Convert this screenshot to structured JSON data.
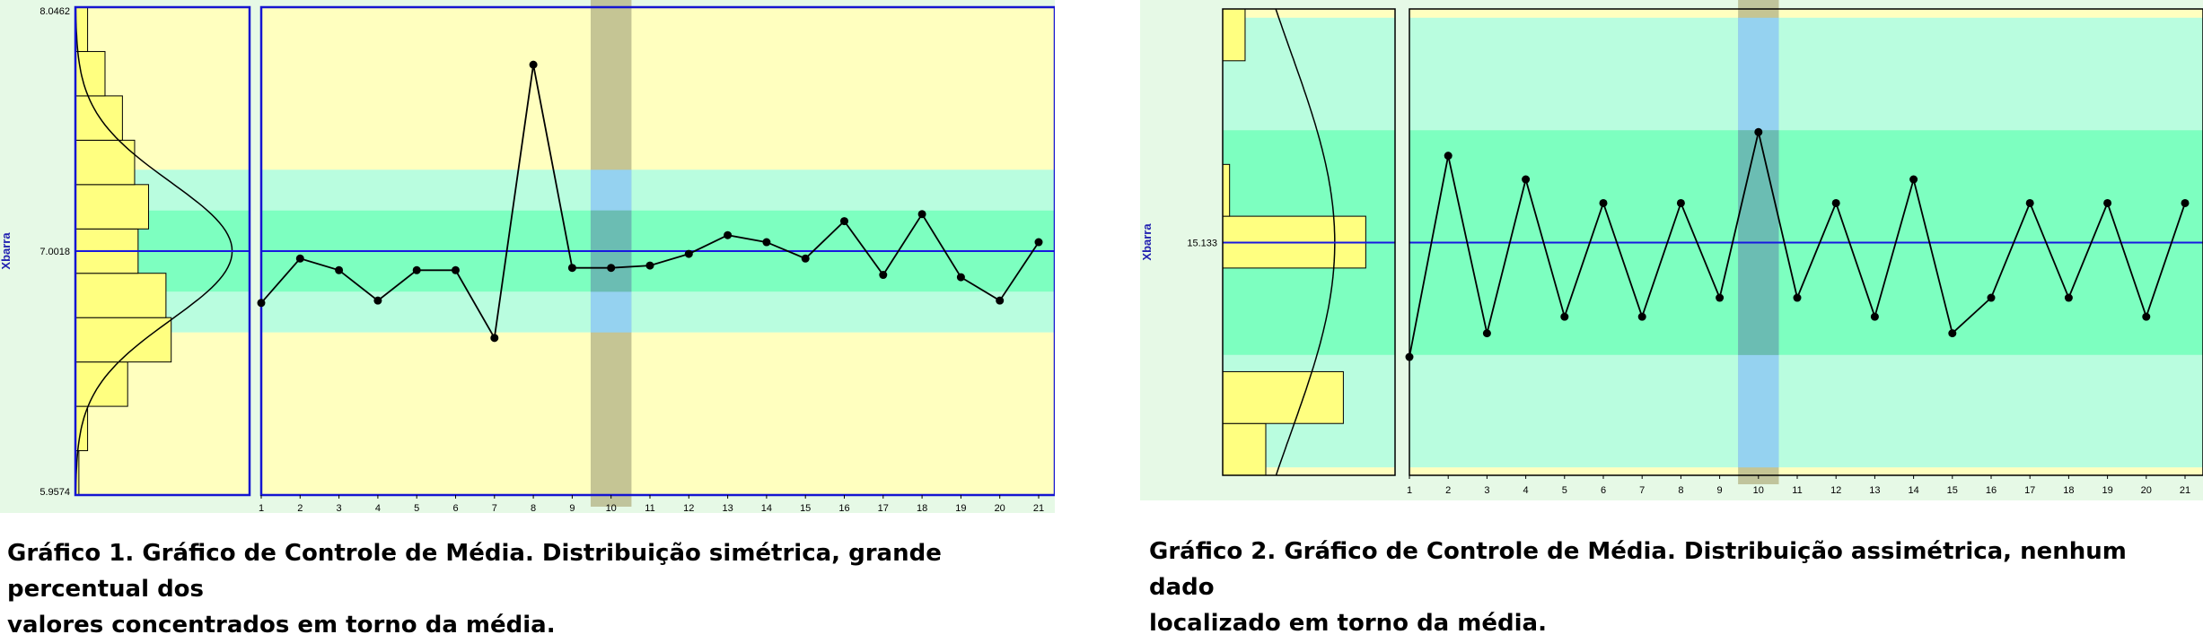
{
  "colors": {
    "background": "#e6f9e6",
    "zone_c": "#7dffc0",
    "zone_b": "#b9fddf",
    "zone_a": "#ffffbf",
    "center_line": "#1818e0",
    "highlight_blue": "#8fd3ff",
    "highlight_gray": "#b7b78a",
    "histogram_fill": "#ffff80",
    "ylabel_color": "#2020b0"
  },
  "chart_data": [
    {
      "type": "line",
      "ylabel": "Xbarra",
      "ytick_top": "8.0462",
      "ytick_center": "7.0018",
      "ytick_bottom": "5.9574",
      "x": [
        1,
        2,
        3,
        4,
        5,
        6,
        7,
        8,
        9,
        10,
        11,
        12,
        13,
        14,
        15,
        16,
        17,
        18,
        19,
        20,
        21
      ],
      "x_tick_labels": [
        "1",
        "2",
        "3",
        "4",
        "5",
        "6",
        "7",
        "8",
        "9",
        "10",
        "11",
        "12",
        "13",
        "14",
        "15",
        "16",
        "17",
        "18",
        "19",
        "20",
        "21"
      ],
      "values": [
        6.78,
        6.97,
        6.92,
        6.79,
        6.92,
        6.92,
        6.63,
        7.8,
        6.93,
        6.93,
        6.94,
        6.99,
        7.07,
        7.04,
        6.97,
        7.13,
        6.9,
        7.16,
        6.89,
        6.79,
        7.04
      ],
      "ylim": [
        5.9574,
        8.0462
      ],
      "center": 7.0018,
      "sigma": 0.1741,
      "highlighted_x": 10,
      "histogram": [
        0.02,
        0.07,
        0.3,
        0.55,
        0.52,
        0.36,
        0.42,
        0.34,
        0.27,
        0.17,
        0.07
      ],
      "bell_peak": 0.9,
      "caption_line1": "Gráfico 1. Gráfico de Controle de Média. Distribuição simétrica, grande percentual dos",
      "caption_line2": "valores concentrados em torno da média."
    },
    {
      "type": "line",
      "ylabel": "Xbarra",
      "ytick_center": "15.133",
      "x": [
        1,
        2,
        3,
        4,
        5,
        6,
        7,
        8,
        9,
        10,
        11,
        12,
        13,
        14,
        15,
        16,
        17,
        18,
        19,
        20,
        21
      ],
      "x_tick_labels": [
        "1",
        "2",
        "3",
        "4",
        "5",
        "6",
        "7",
        "8",
        "9",
        "10",
        "11",
        "12",
        "13",
        "14",
        "15",
        "16",
        "17",
        "18",
        "19",
        "20",
        "21"
      ],
      "values": [
        14.65,
        15.5,
        14.75,
        15.4,
        14.82,
        15.3,
        14.82,
        15.3,
        14.9,
        15.6,
        14.9,
        15.3,
        14.82,
        15.4,
        14.75,
        14.9,
        15.3,
        14.9,
        15.3,
        14.82,
        15.3
      ],
      "ylim": [
        14.15,
        16.12
      ],
      "center": 15.133,
      "sigma": 0.4749,
      "highlighted_x": 10,
      "histogram": [
        0.25,
        0.7,
        0.0,
        0.0,
        0.83,
        0.04,
        0.0,
        0.0,
        0.13
      ],
      "bell_peak": 0.65,
      "caption_line1": "Gráfico 2. Gráfico de Controle de Média. Distribuição assimétrica, nenhum dado",
      "caption_line2": "localizado em torno da média."
    }
  ]
}
